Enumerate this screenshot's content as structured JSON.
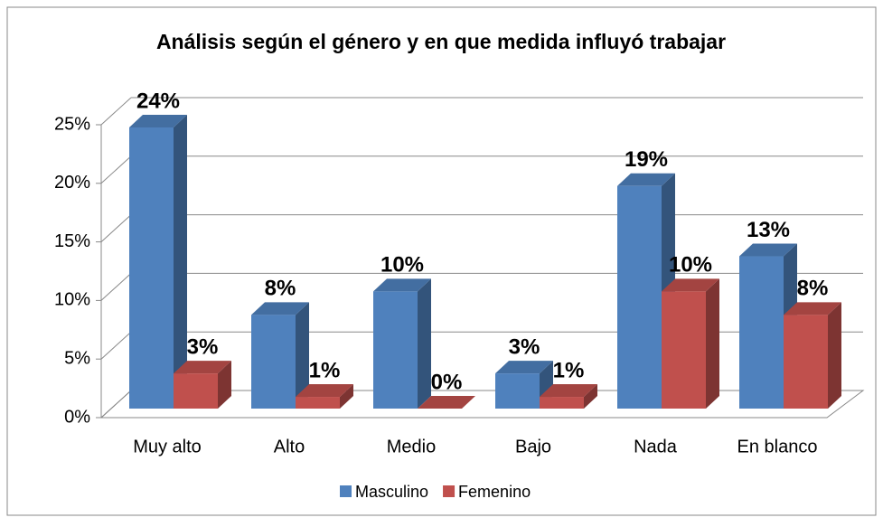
{
  "chart_data": {
    "type": "bar3d",
    "title": "Análisis según el género y en que medida influyó trabajar",
    "categories": [
      "Muy alto",
      "Alto",
      "Medio",
      "Bajo",
      "Nada",
      "En blanco"
    ],
    "series": [
      {
        "name": "Masculino",
        "color": "#4f81bd",
        "values": [
          24,
          8,
          10,
          3,
          19,
          13
        ],
        "value_labels": [
          "24%",
          "8%",
          "10%",
          "3%",
          "19%",
          "13%"
        ]
      },
      {
        "name": "Femenino",
        "color": "#c0504d",
        "values": [
          3,
          1,
          0,
          1,
          10,
          8
        ],
        "value_labels": [
          "3%",
          "1%",
          "0%",
          "1%",
          "10%",
          "8%"
        ]
      }
    ],
    "ylim": [
      0,
      25
    ],
    "yticks": [
      {
        "value": 0,
        "label": "0%"
      },
      {
        "value": 5,
        "label": "5%"
      },
      {
        "value": 10,
        "label": "10%"
      },
      {
        "value": 15,
        "label": "15%"
      },
      {
        "value": 20,
        "label": "20%"
      },
      {
        "value": 25,
        "label": "25%"
      }
    ],
    "grid": true,
    "legend": "bottom"
  }
}
